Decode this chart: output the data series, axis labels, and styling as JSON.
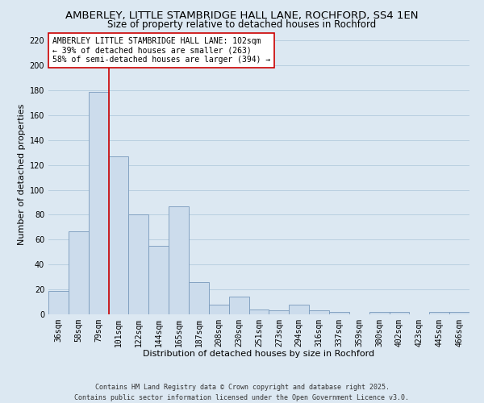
{
  "title": "AMBERLEY, LITTLE STAMBRIDGE HALL LANE, ROCHFORD, SS4 1EN",
  "subtitle": "Size of property relative to detached houses in Rochford",
  "xlabel": "Distribution of detached houses by size in Rochford",
  "ylabel": "Number of detached properties",
  "bar_labels": [
    "36sqm",
    "58sqm",
    "79sqm",
    "101sqm",
    "122sqm",
    "144sqm",
    "165sqm",
    "187sqm",
    "208sqm",
    "230sqm",
    "251sqm",
    "273sqm",
    "294sqm",
    "316sqm",
    "337sqm",
    "359sqm",
    "380sqm",
    "402sqm",
    "423sqm",
    "445sqm",
    "466sqm"
  ],
  "bar_values": [
    19,
    67,
    179,
    127,
    80,
    55,
    87,
    26,
    8,
    14,
    4,
    3,
    8,
    3,
    2,
    0,
    2,
    2,
    0,
    2,
    2
  ],
  "bar_color": "#ccdcec",
  "bar_edge_color": "#7799bb",
  "grid_color": "#b8cfe0",
  "background_color": "#dce8f2",
  "vline_color": "#cc0000",
  "vline_pos": 2.5,
  "annotation_text": "AMBERLEY LITTLE STAMBRIDGE HALL LANE: 102sqm\n← 39% of detached houses are smaller (263)\n58% of semi-detached houses are larger (394) →",
  "annotation_box_color": "#ffffff",
  "annotation_box_edge": "#cc0000",
  "ylim": [
    0,
    225
  ],
  "yticks": [
    0,
    20,
    40,
    60,
    80,
    100,
    120,
    140,
    160,
    180,
    200,
    220
  ],
  "footer1": "Contains HM Land Registry data © Crown copyright and database right 2025.",
  "footer2": "Contains public sector information licensed under the Open Government Licence v3.0.",
  "title_fontsize": 9.5,
  "subtitle_fontsize": 8.5,
  "axis_label_fontsize": 8,
  "tick_fontsize": 7,
  "annotation_fontsize": 7,
  "footer_fontsize": 6
}
